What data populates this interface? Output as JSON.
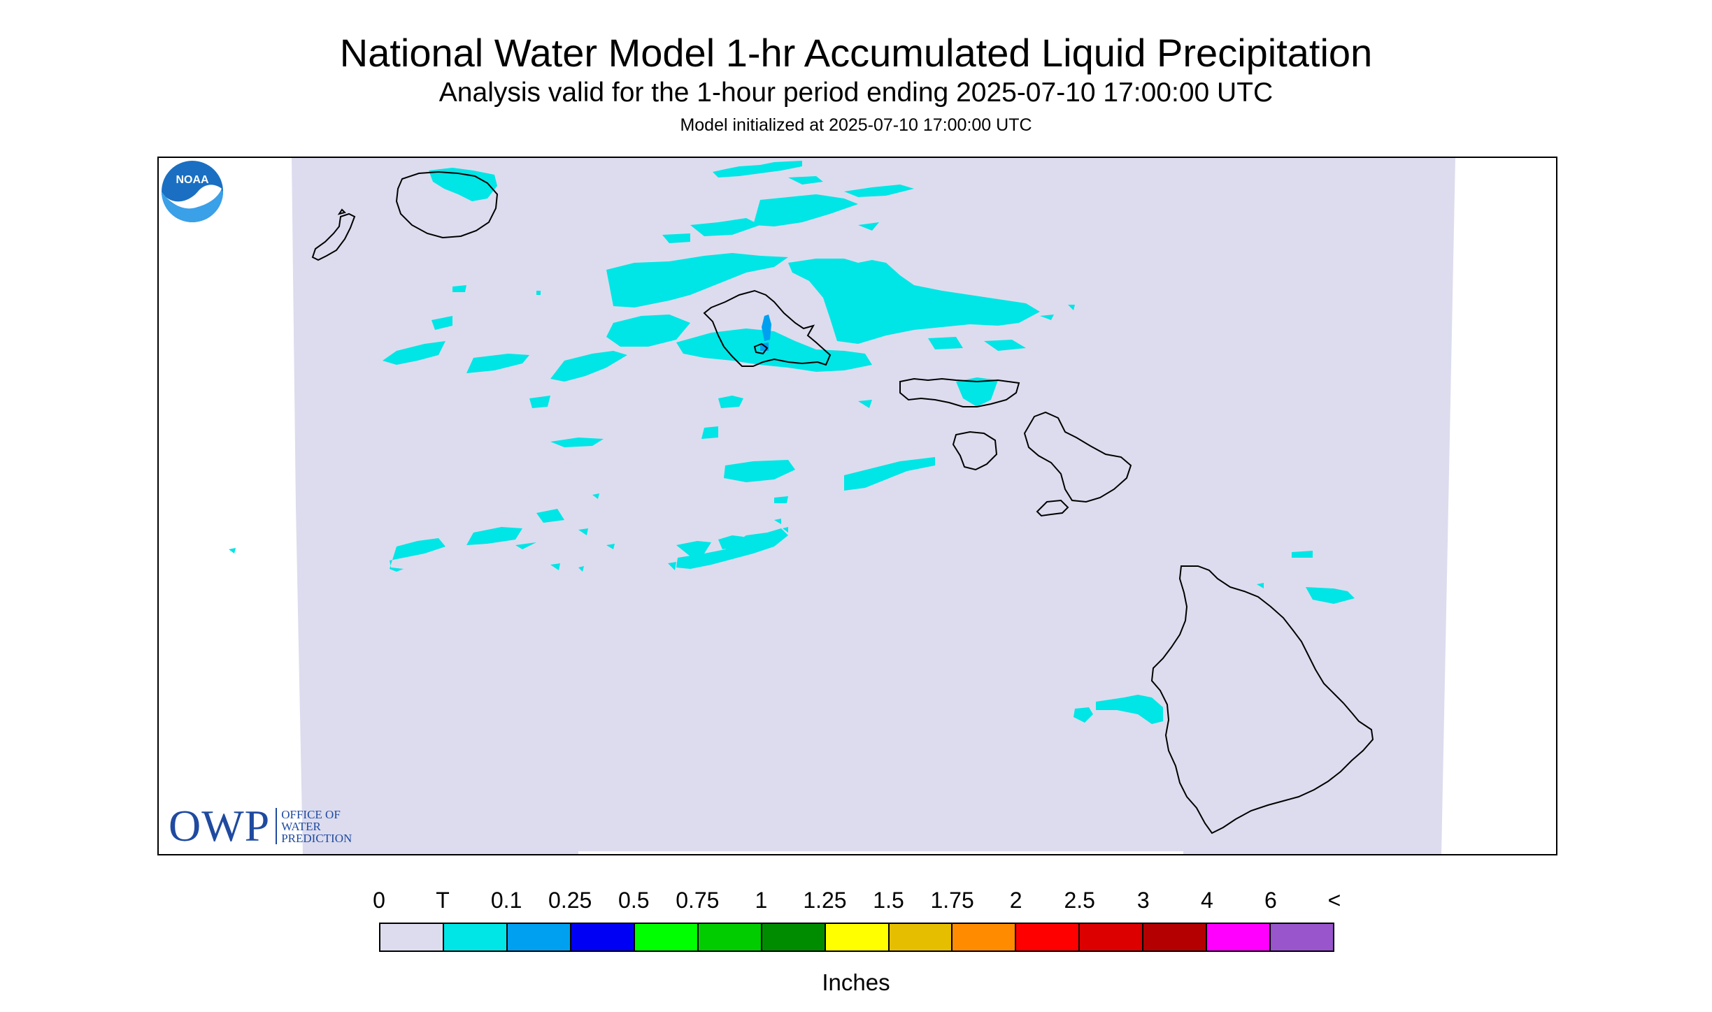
{
  "header": {
    "title": "National Water Model 1-hr Accumulated Liquid Precipitation",
    "subtitle": "Analysis valid for the 1-hour period ending 2025-07-10 17:00:00 UTC",
    "init": "Model initialized at 2025-07-10 17:00:00 UTC"
  },
  "map": {
    "background_color": "#dcdcee",
    "outside_color": "#ffffff",
    "coastline_color": "#000000",
    "region": "Hawaiian Islands",
    "precip_color_main": "#00e5e5",
    "precip_color_heavy": "#00a0f0"
  },
  "logos": {
    "owp_big": "OWP",
    "owp_line1": "OFFICE OF",
    "owp_line2": "WATER",
    "owp_line3": "PREDICTION",
    "noaa_text": "NOAA"
  },
  "legend": {
    "labels": [
      "0",
      "T",
      "0.1",
      "0.25",
      "0.5",
      "0.75",
      "1",
      "1.25",
      "1.5",
      "1.75",
      "2",
      "2.5",
      "3",
      "4",
      "6",
      "<"
    ],
    "colors": [
      "#dcdcee",
      "#00e5e5",
      "#00a0f0",
      "#0000f5",
      "#00ff00",
      "#00cc00",
      "#008c00",
      "#ffff00",
      "#e6be00",
      "#ff8c00",
      "#ff0000",
      "#dc0000",
      "#b40000",
      "#ff00ff",
      "#9955cc"
    ],
    "units": "Inches"
  }
}
